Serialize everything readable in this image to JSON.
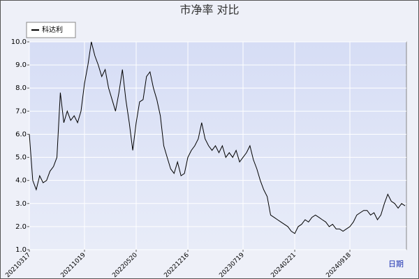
{
  "chart_data": {
    "type": "line",
    "title": "市净率  对比",
    "x_label": "日期",
    "categories": [
      "20210317",
      null,
      null,
      null,
      null,
      null,
      null,
      null,
      null,
      null,
      null,
      null,
      null,
      null,
      null,
      null,
      "20211019",
      null,
      null,
      null,
      null,
      null,
      null,
      null,
      null,
      null,
      null,
      null,
      null,
      null,
      null,
      "20220520",
      null,
      null,
      null,
      null,
      null,
      null,
      null,
      null,
      null,
      null,
      null,
      null,
      null,
      null,
      "20221216",
      null,
      null,
      null,
      null,
      null,
      null,
      null,
      null,
      null,
      null,
      null,
      null,
      null,
      null,
      null,
      "20230719",
      null,
      null,
      null,
      null,
      null,
      null,
      null,
      null,
      null,
      null,
      null,
      null,
      null,
      null,
      "20240221",
      null,
      null,
      null,
      null,
      null,
      null,
      null,
      null,
      null,
      null,
      null,
      null,
      null,
      null,
      null,
      "20240918",
      null,
      null,
      null,
      null,
      null,
      null,
      null,
      null,
      null,
      null,
      null,
      null,
      null,
      null,
      null,
      null
    ],
    "series": [
      {
        "name": "科达利",
        "color": "#000000",
        "values": [
          6.0,
          4.0,
          3.6,
          4.2,
          3.9,
          4.0,
          4.4,
          4.6,
          5.0,
          7.8,
          6.5,
          7.0,
          6.6,
          6.8,
          6.5,
          7.0,
          8.2,
          9.0,
          10.0,
          9.4,
          9.0,
          8.5,
          8.8,
          8.0,
          7.5,
          7.0,
          7.8,
          8.8,
          7.5,
          6.5,
          5.3,
          6.5,
          7.4,
          7.5,
          8.5,
          8.7,
          8.0,
          7.5,
          6.8,
          5.5,
          5.0,
          4.5,
          4.3,
          4.8,
          4.2,
          4.3,
          5.0,
          5.3,
          5.5,
          5.8,
          6.5,
          5.8,
          5.5,
          5.3,
          5.5,
          5.2,
          5.5,
          5.0,
          5.2,
          5.0,
          5.3,
          4.8,
          5.0,
          5.2,
          5.5,
          4.9,
          4.5,
          4.0,
          3.6,
          3.3,
          2.5,
          2.4,
          2.3,
          2.2,
          2.1,
          2.0,
          1.8,
          1.7,
          2.0,
          2.1,
          2.3,
          2.2,
          2.4,
          2.5,
          2.4,
          2.3,
          2.2,
          2.0,
          2.1,
          1.9,
          1.9,
          1.8,
          1.9,
          2.0,
          2.2,
          2.5,
          2.6,
          2.7,
          2.7,
          2.5,
          2.6,
          2.3,
          2.5,
          3.0,
          3.4,
          3.1,
          3.0,
          2.8,
          3.0,
          2.9
        ]
      }
    ],
    "ylim": [
      1,
      10
    ],
    "yticks": [
      {
        "value": 1,
        "label": "1.0"
      },
      {
        "value": 2,
        "label": "2.0"
      },
      {
        "value": 3,
        "label": "3.0"
      },
      {
        "value": 4,
        "label": "4.0"
      },
      {
        "value": 5,
        "label": "5.0"
      },
      {
        "value": 6,
        "label": "6.0"
      },
      {
        "value": 7,
        "label": "7.0"
      },
      {
        "value": 8,
        "label": "8.0"
      },
      {
        "value": 9,
        "label": "9.0"
      },
      {
        "value": 10,
        "label": "10.0"
      }
    ],
    "grid": true,
    "legend": "top-left"
  }
}
